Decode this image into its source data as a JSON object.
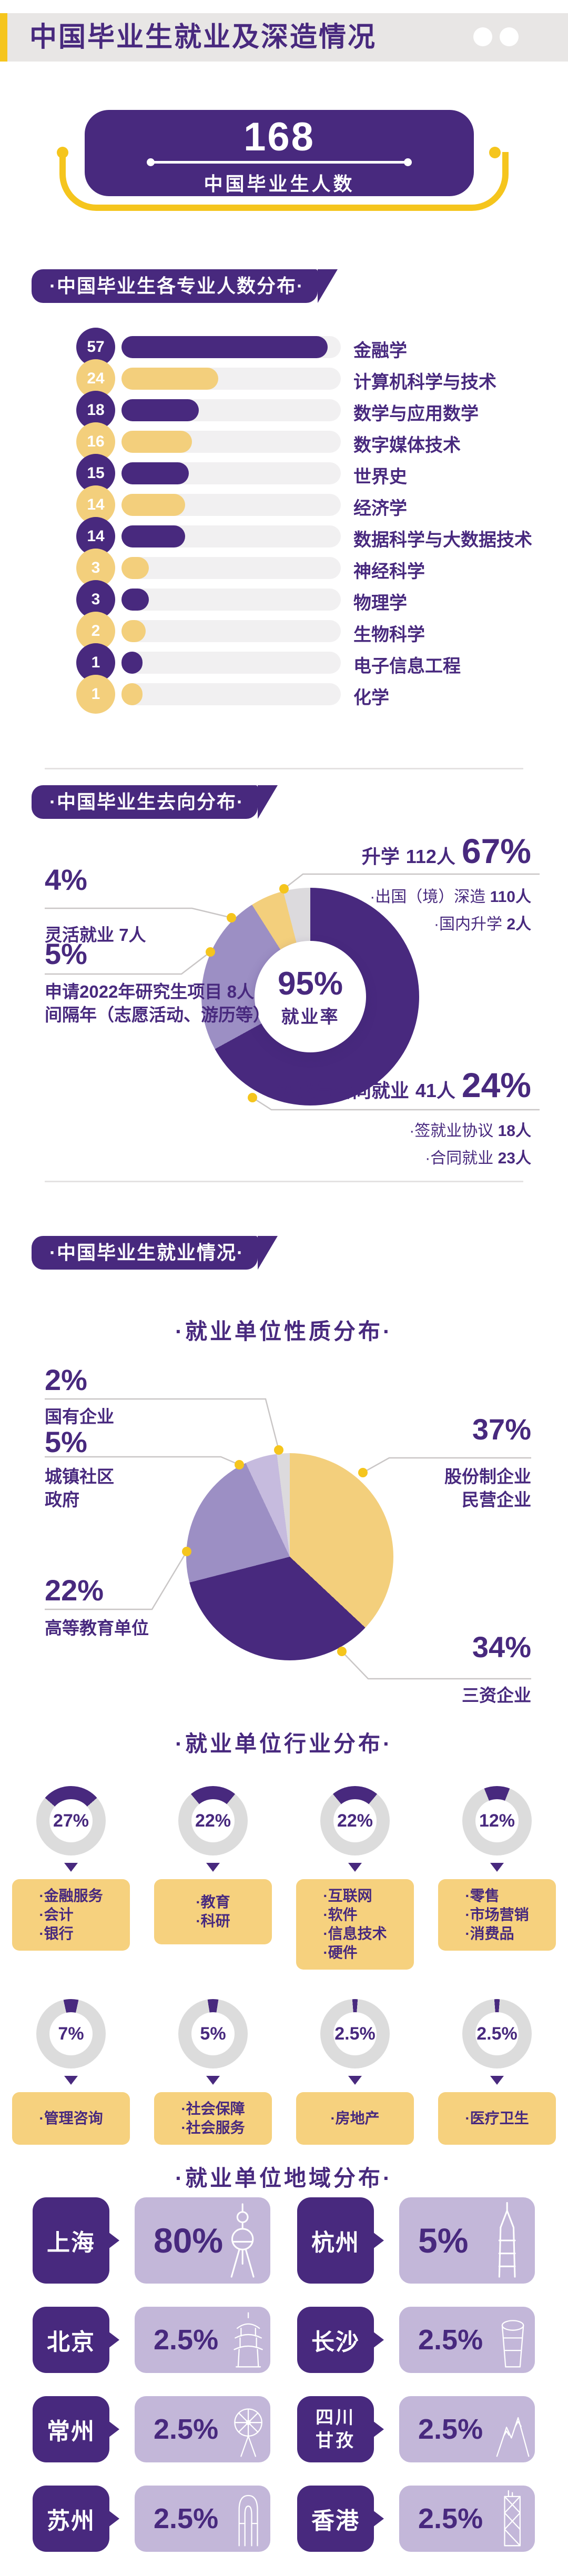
{
  "colors": {
    "purple": "#48297e",
    "mid_purple": "#9c8fc4",
    "light_purple": "#c6bbde",
    "pale_gray": "#dcdadd",
    "gold": "#f5c51d",
    "bar_yellow": "#f3cf7c",
    "box_yellow": "#f6d17e",
    "region_purple": "#c3b7d9",
    "ring_gray": "#dcdcdc",
    "header_gray": "#e8e6e5"
  },
  "header": {
    "title": "中国毕业生就业及深造情况"
  },
  "hero": {
    "value": "168",
    "label": "中国毕业生人数"
  },
  "majors": {
    "section_title": "·中国毕业生各专业人数分布·",
    "max": 57,
    "items": [
      {
        "value": 57,
        "label": "金融学",
        "color": "#48297e"
      },
      {
        "value": 24,
        "label": "计算机科学与技术",
        "color": "#f3cf7c"
      },
      {
        "value": 18,
        "label": "数学与应用数学",
        "color": "#48297e"
      },
      {
        "value": 16,
        "label": "数字媒体技术",
        "color": "#f3cf7c"
      },
      {
        "value": 15,
        "label": "世界史",
        "color": "#48297e"
      },
      {
        "value": 14,
        "label": "经济学",
        "color": "#f3cf7c"
      },
      {
        "value": 14,
        "label": "数据科学与大数据技术",
        "color": "#48297e"
      },
      {
        "value": 3,
        "label": "神经科学",
        "color": "#f3cf7c"
      },
      {
        "value": 3,
        "label": "物理学",
        "color": "#48297e"
      },
      {
        "value": 2,
        "label": "生物科学",
        "color": "#f3cf7c"
      },
      {
        "value": 1,
        "label": "电子信息工程",
        "color": "#48297e"
      },
      {
        "value": 1,
        "label": "化学",
        "color": "#f3cf7c"
      }
    ]
  },
  "destinations": {
    "section_title": "·中国毕业生去向分布·",
    "center_value": "95%",
    "center_label": "就业率",
    "slices": [
      {
        "label": "升学",
        "value": 67,
        "color": "#48297e"
      },
      {
        "label": "协议与合同就业",
        "value": 24,
        "color": "#9c8fc4"
      },
      {
        "label": "申请2022年研究生项目/间隔年",
        "value": 5,
        "color": "#f3cf7c"
      },
      {
        "label": "灵活就业",
        "value": 4,
        "color": "#dcdadd"
      }
    ],
    "callout_up": {
      "title": "升学",
      "count": "112人",
      "pct": "67%",
      "bullets": [
        {
          "label": "·出国（境）深造",
          "value": "110人"
        },
        {
          "label": "·国内升学",
          "value": "2人"
        }
      ]
    },
    "callout_flex": {
      "pct": "4%",
      "label": "灵活就业",
      "value": "7人"
    },
    "callout_apply": {
      "pct": "5%",
      "line1_label": "申请2022年研究生项目",
      "line1_value": "8人",
      "line2": "间隔年（志愿活动、游历等）"
    },
    "callout_contract": {
      "title": "协议与合同就业",
      "count": "41人",
      "pct": "24%",
      "bullets": [
        {
          "label": "·签就业协议",
          "value": "18人"
        },
        {
          "label": "·合同就业",
          "value": "23人"
        }
      ]
    }
  },
  "employment": {
    "section_title": "·中国毕业生就业情况·",
    "nature": {
      "subtitle": "·就业单位性质分布·",
      "slices": [
        {
          "label": "股份制企业/民营企业",
          "value": 37,
          "color": "#f3cf7c"
        },
        {
          "label": "三资企业",
          "value": 34,
          "color": "#48297e"
        },
        {
          "label": "高等教育单位",
          "value": 22,
          "color": "#9c8fc4"
        },
        {
          "label": "城镇社区政府",
          "value": 5,
          "color": "#c6bbde"
        },
        {
          "label": "国有企业",
          "value": 2,
          "color": "#dcdadd"
        }
      ],
      "callouts": [
        {
          "pct": "2%",
          "lines": [
            "国有企业"
          ]
        },
        {
          "pct": "5%",
          "lines": [
            "城镇社区",
            "政府"
          ]
        },
        {
          "pct": "37%",
          "lines": [
            "股份制企业",
            "民营企业"
          ]
        },
        {
          "pct": "22%",
          "lines": [
            "高等教育单位"
          ]
        },
        {
          "pct": "34%",
          "lines": [
            "三资企业"
          ]
        }
      ]
    },
    "industry": {
      "subtitle": "·就业单位行业分布·",
      "gauges": [
        {
          "pct": "27%",
          "value": 27,
          "items": [
            "·金融服务",
            "·会计",
            "·银行"
          ]
        },
        {
          "pct": "22%",
          "value": 22,
          "items": [
            "·教育",
            "·科研"
          ]
        },
        {
          "pct": "22%",
          "value": 22,
          "items": [
            "·互联网",
            "·软件",
            "·信息技术",
            "·硬件"
          ]
        },
        {
          "pct": "12%",
          "value": 12,
          "items": [
            "·零售",
            "·市场营销",
            "·消费品"
          ]
        },
        {
          "pct": "7%",
          "value": 7,
          "items": [
            "·管理咨询"
          ]
        },
        {
          "pct": "5%",
          "value": 5,
          "items": [
            "·社会保障",
            "·社会服务"
          ]
        },
        {
          "pct": "2.5%",
          "value": 2.5,
          "items": [
            "·房地产"
          ]
        },
        {
          "pct": "2.5%",
          "value": 2.5,
          "items": [
            "·医疗卫生"
          ]
        }
      ]
    },
    "region": {
      "subtitle": "·就业单位地域分布·",
      "cities": [
        {
          "name": "上海",
          "pct": "80%",
          "icon": "shanghai"
        },
        {
          "name": "杭州",
          "pct": "5%",
          "icon": "hangzhou"
        },
        {
          "name": "北京",
          "pct": "2.5%",
          "icon": "beijing"
        },
        {
          "name": "长沙",
          "pct": "2.5%",
          "icon": "changsha"
        },
        {
          "name": "常州",
          "pct": "2.5%",
          "icon": "changzhou"
        },
        {
          "name": "四川甘孜",
          "pct": "2.5%",
          "icon": "ganzi"
        },
        {
          "name": "苏州",
          "pct": "2.5%",
          "icon": "suzhou"
        },
        {
          "name": "香港",
          "pct": "2.5%",
          "icon": "hongkong"
        }
      ]
    }
  },
  "chart_data": [
    {
      "type": "bar",
      "title": "中国毕业生各专业人数分布",
      "categories": [
        "金融学",
        "计算机科学与技术",
        "数学与应用数学",
        "数字媒体技术",
        "世界史",
        "经济学",
        "数据科学与大数据技术",
        "神经科学",
        "物理学",
        "生物科学",
        "电子信息工程",
        "化学"
      ],
      "values": [
        57,
        24,
        18,
        16,
        15,
        14,
        14,
        3,
        3,
        2,
        1,
        1
      ],
      "xlabel": "人数",
      "ylabel": "专业",
      "xlim": [
        0,
        57
      ],
      "grid": false,
      "legend": "none"
    },
    {
      "type": "pie",
      "title": "中国毕业生去向分布",
      "labels": [
        "升学",
        "协议与合同就业",
        "申请2022年研究生项目/间隔年（志愿活动、游历等）",
        "灵活就业"
      ],
      "values": [
        67,
        24,
        5,
        4
      ],
      "unit": "%",
      "center_label": "95% 就业率",
      "annotations": [
        "升学 112人：出国（境）深造 110人、国内升学 2人",
        "协议与合同就业 41人：签就业协议 18人、合同就业 23人",
        "申请2022年研究生项目 8人",
        "灵活就业 7人"
      ]
    },
    {
      "type": "pie",
      "title": "就业单位性质分布",
      "labels": [
        "股份制企业/民营企业",
        "三资企业",
        "高等教育单位",
        "城镇社区政府",
        "国有企业"
      ],
      "values": [
        37,
        34,
        22,
        5,
        2
      ],
      "unit": "%"
    },
    {
      "type": "pie",
      "title": "就业单位行业分布",
      "labels": [
        "金融服务/会计/银行",
        "教育/科研",
        "互联网/软件/信息技术/硬件",
        "零售/市场营销/消费品",
        "管理咨询",
        "社会保障/社会服务",
        "房地产",
        "医疗卫生"
      ],
      "values": [
        27,
        22,
        22,
        12,
        7,
        5,
        2.5,
        2.5
      ],
      "unit": "%"
    },
    {
      "type": "bar",
      "title": "就业单位地域分布",
      "categories": [
        "上海",
        "杭州",
        "北京",
        "长沙",
        "常州",
        "四川甘孜",
        "苏州",
        "香港"
      ],
      "values": [
        80,
        5,
        2.5,
        2.5,
        2.5,
        2.5,
        2.5,
        2.5
      ],
      "unit": "%"
    }
  ]
}
